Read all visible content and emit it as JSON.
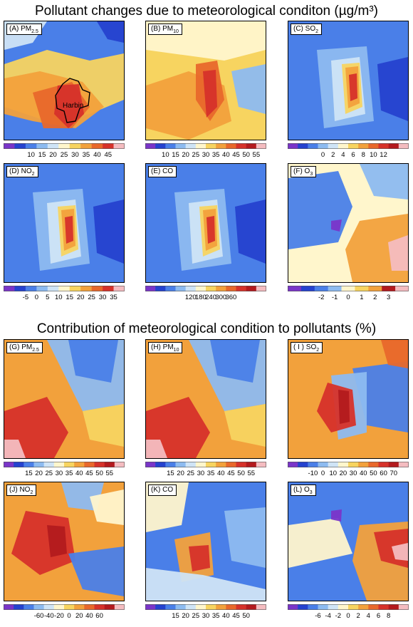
{
  "titles": {
    "top": "Pollutant changes due to meteorological conditon (µg/m³)",
    "bottom": "Contribution of meteorological condition to pollutants (%)"
  },
  "colors": {
    "purple": "#7a35c9",
    "darkblue": "#2542cf",
    "blue": "#4a7fe8",
    "sky": "#8dbbf0",
    "paleblue": "#cfe4f6",
    "cream": "#fff6cc",
    "yellow": "#f7d460",
    "orange": "#f2a13c",
    "darkorange": "#e8682b",
    "red": "#d6322a",
    "darkred": "#b31a1e",
    "pink": "#f4bcc0",
    "white": "#ffffff"
  },
  "chart_data": [
    {
      "id": "A",
      "type": "heatmap",
      "label_prefix": "(A) PM",
      "label_sub": "2.5",
      "annotation": "Harbin",
      "colorbar_ticks": [
        "10",
        "15",
        "20",
        "25",
        "30",
        "35",
        "40",
        "45"
      ],
      "colorbar_colors": [
        "purple",
        "darkblue",
        "blue",
        "sky",
        "paleblue",
        "cream",
        "yellow",
        "orange",
        "darkorange",
        "red",
        "pink"
      ],
      "base_color": "blue",
      "pattern": "a"
    },
    {
      "id": "B",
      "type": "heatmap",
      "label_prefix": "(B) PM",
      "label_sub": "10",
      "colorbar_ticks": [
        "10",
        "15",
        "20",
        "25",
        "30",
        "35",
        "40",
        "45",
        "50",
        "55"
      ],
      "colorbar_colors": [
        "purple",
        "darkblue",
        "blue",
        "sky",
        "paleblue",
        "cream",
        "yellow",
        "orange",
        "darkorange",
        "red",
        "darkred",
        "pink"
      ],
      "base_color": "yellow",
      "pattern": "b"
    },
    {
      "id": "C",
      "type": "heatmap",
      "label_prefix": "(C) SO",
      "label_sub": "2",
      "colorbar_ticks": [
        "0",
        "2",
        "4",
        "6",
        "8",
        "10",
        "12"
      ],
      "colorbar_colors": [
        "purple",
        "darkblue",
        "blue",
        "sky",
        "paleblue",
        "cream",
        "yellow",
        "orange",
        "darkorange",
        "red",
        "darkred",
        "pink"
      ],
      "base_color": "blue",
      "pattern": "c"
    },
    {
      "id": "D",
      "type": "heatmap",
      "label_prefix": "(D) NO",
      "label_sub": "2",
      "colorbar_ticks": [
        "-5",
        "0",
        "5",
        "10",
        "15",
        "20",
        "25",
        "30",
        "35"
      ],
      "colorbar_colors": [
        "purple",
        "darkblue",
        "blue",
        "sky",
        "paleblue",
        "cream",
        "yellow",
        "orange",
        "darkorange",
        "red",
        "pink"
      ],
      "base_color": "blue",
      "pattern": "c"
    },
    {
      "id": "E",
      "type": "heatmap",
      "label_prefix": "(E) CO",
      "label_sub": "",
      "colorbar_ticks": [
        "120",
        "180",
        "240",
        "300",
        "360"
      ],
      "colorbar_colors": [
        "purple",
        "darkblue",
        "blue",
        "sky",
        "paleblue",
        "cream",
        "yellow",
        "orange",
        "darkorange",
        "red",
        "darkred",
        "pink"
      ],
      "base_color": "blue",
      "pattern": "c"
    },
    {
      "id": "F",
      "type": "heatmap",
      "label_prefix": "(F) O",
      "label_sub": "3",
      "colorbar_ticks": [
        "-2",
        "-1",
        "0",
        "1",
        "2",
        "3"
      ],
      "colorbar_colors": [
        "purple",
        "darkblue",
        "blue",
        "sky",
        "cream",
        "yellow",
        "orange",
        "darkred",
        "pink"
      ],
      "base_color": "cream",
      "pattern": "f"
    },
    {
      "id": "G",
      "type": "heatmap",
      "label_prefix": "(G) PM",
      "label_sub": "2.5",
      "colorbar_ticks": [
        "15",
        "20",
        "25",
        "30",
        "35",
        "40",
        "45",
        "50",
        "55"
      ],
      "colorbar_colors": [
        "purple",
        "darkblue",
        "blue",
        "sky",
        "paleblue",
        "cream",
        "yellow",
        "orange",
        "darkorange",
        "red",
        "darkred",
        "pink"
      ],
      "base_color": "orange",
      "pattern": "g"
    },
    {
      "id": "H",
      "type": "heatmap",
      "label_prefix": "(H) PM",
      "label_sub": "10",
      "colorbar_ticks": [
        "15",
        "20",
        "25",
        "30",
        "35",
        "40",
        "45",
        "50",
        "55"
      ],
      "colorbar_colors": [
        "purple",
        "darkblue",
        "blue",
        "sky",
        "paleblue",
        "cream",
        "yellow",
        "orange",
        "darkorange",
        "red",
        "darkred",
        "pink"
      ],
      "base_color": "orange",
      "pattern": "g"
    },
    {
      "id": "I",
      "type": "heatmap",
      "label_prefix": "( I ) SO",
      "label_sub": "2",
      "colorbar_ticks": [
        "-10",
        "0",
        "10",
        "20",
        "30",
        "40",
        "50",
        "60",
        "70"
      ],
      "colorbar_colors": [
        "purple",
        "darkblue",
        "blue",
        "sky",
        "paleblue",
        "cream",
        "yellow",
        "orange",
        "darkorange",
        "red",
        "darkred",
        "pink"
      ],
      "base_color": "orange",
      "pattern": "i"
    },
    {
      "id": "J",
      "type": "heatmap",
      "label_prefix": "(J) NO",
      "label_sub": "2",
      "colorbar_ticks": [
        "-60",
        "-40",
        "-20",
        "0",
        "20",
        "40",
        "60"
      ],
      "colorbar_colors": [
        "purple",
        "darkblue",
        "blue",
        "sky",
        "paleblue",
        "cream",
        "yellow",
        "orange",
        "darkorange",
        "red",
        "darkred",
        "pink"
      ],
      "base_color": "orange",
      "pattern": "j"
    },
    {
      "id": "K",
      "type": "heatmap",
      "label_prefix": "(K) CO",
      "label_sub": "",
      "colorbar_ticks": [
        "15",
        "20",
        "25",
        "30",
        "35",
        "40",
        "45",
        "50"
      ],
      "colorbar_colors": [
        "purple",
        "darkblue",
        "blue",
        "sky",
        "paleblue",
        "cream",
        "yellow",
        "orange",
        "darkorange",
        "red",
        "darkred",
        "pink"
      ],
      "base_color": "blue",
      "pattern": "k"
    },
    {
      "id": "L",
      "type": "heatmap",
      "label_prefix": "(L) O",
      "label_sub": "3",
      "colorbar_ticks": [
        "-6",
        "-4",
        "-2",
        "0",
        "2",
        "4",
        "6",
        "8"
      ],
      "colorbar_colors": [
        "purple",
        "darkblue",
        "blue",
        "sky",
        "paleblue",
        "cream",
        "yellow",
        "orange",
        "darkorange",
        "red",
        "darkred",
        "pink"
      ],
      "base_color": "blue",
      "pattern": "l"
    }
  ]
}
